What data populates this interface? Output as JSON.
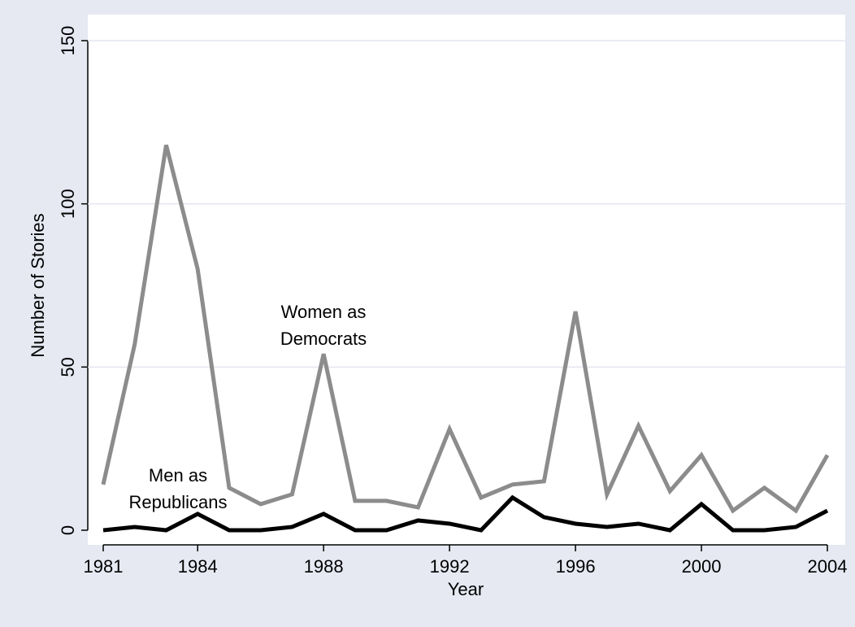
{
  "chart_data": {
    "type": "line",
    "y_label": "Number of Stories",
    "x_label": "Year",
    "x": [
      1981,
      1982,
      1983,
      1984,
      1985,
      1986,
      1987,
      1988,
      1989,
      1990,
      1991,
      1992,
      1993,
      1994,
      1995,
      1996,
      1997,
      1998,
      1999,
      2000,
      2001,
      2002,
      2003,
      2004
    ],
    "series": [
      {
        "color": "#8c8c8c",
        "values": [
          14,
          57,
          118,
          80,
          13,
          8,
          11,
          54,
          9,
          9,
          7,
          31,
          10,
          14,
          15,
          67,
          11,
          32,
          12,
          23,
          6,
          13,
          6,
          23
        ]
      },
      {
        "color": "#000000",
        "values": [
          0,
          1,
          0,
          5,
          0,
          0,
          1,
          5,
          0,
          0,
          3,
          2,
          0,
          10,
          4,
          2,
          1,
          2,
          0,
          8,
          0,
          0,
          1,
          6
        ]
      }
    ],
    "annotations": [
      {
        "lines": [
          "Women as",
          "Democrats"
        ]
      },
      {
        "lines": [
          "Men as",
          "Republicans"
        ]
      }
    ],
    "xlim": [
      1981,
      2004
    ],
    "xticks": [
      1981,
      1984,
      1988,
      1992,
      1996,
      2000,
      2004
    ],
    "ylim": [
      0,
      150
    ],
    "yticks": [
      0,
      50,
      100,
      150
    ],
    "grid": true
  }
}
